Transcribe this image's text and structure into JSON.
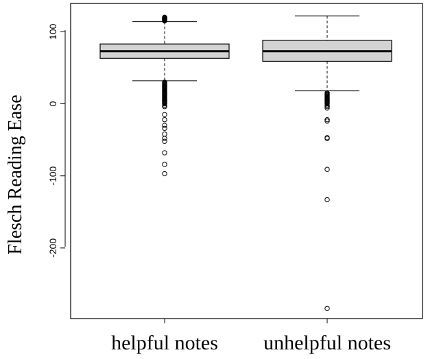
{
  "chart_data": {
    "type": "boxplot",
    "title": "",
    "xlabel": "",
    "ylabel": "Flesch Reading Ease",
    "ylim": [
      -285,
      123
    ],
    "yticks": [
      100,
      0,
      -100,
      -200
    ],
    "grid": false,
    "legend": "none",
    "box_fill": "#d3d3d3",
    "categories": [
      "helpful notes",
      "unhelpful notes"
    ],
    "boxes": [
      {
        "category": "helpful notes",
        "whisker_low": 32,
        "q1": 63,
        "median": 73,
        "q3": 83,
        "whisker_high": 114,
        "outliers": [
          115,
          115.5,
          116,
          116.5,
          117,
          117.5,
          118,
          118.5,
          119,
          119.5,
          120,
          30,
          29,
          28,
          27,
          26,
          25,
          24,
          23,
          22,
          21,
          20,
          19,
          18,
          17,
          16,
          15,
          14,
          13,
          12,
          11,
          10,
          9,
          8,
          7,
          6,
          5,
          4,
          3,
          2,
          1,
          0,
          -2,
          -4,
          -15,
          -22,
          -30,
          -34,
          -42,
          -48,
          -52,
          -68,
          -84,
          -97
        ]
      },
      {
        "category": "unhelpful notes",
        "whisker_low": 18,
        "q1": 59,
        "median": 73,
        "q3": 88,
        "whisker_high": 122,
        "outliers": [
          15,
          14,
          13,
          12,
          11,
          10,
          9,
          8,
          7,
          6,
          5,
          4,
          3,
          2,
          1,
          0,
          -2,
          -4,
          -6,
          -22,
          -24,
          -47,
          -48,
          -91,
          -133,
          -284
        ]
      }
    ]
  }
}
